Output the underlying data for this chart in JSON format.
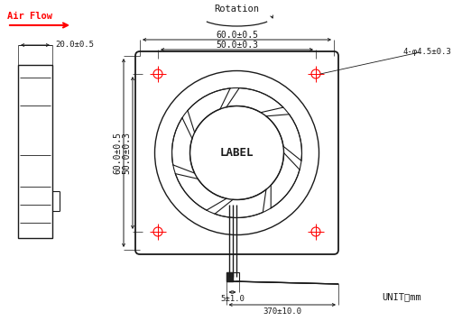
{
  "bg_color": "#ffffff",
  "line_color": "#1a1a1a",
  "red_color": "#ff0000",
  "label_airflow": "Air Flow",
  "label_unit": "UNIT：mm",
  "label_label": "LABEL",
  "title_rotation": "Rotation",
  "dim_width_outer": "60.0±0.5",
  "dim_width_inner": "50.0±0.3",
  "dim_height_outer": "60.0±0.5",
  "dim_height_inner": "50.0±0.3",
  "dim_depth": "20.0±0.5",
  "dim_hole": "4-φ4.5±0.3",
  "dim_wire_gap": "5±1.0",
  "dim_wire_len": "370±10.0",
  "figsize": [
    5.12,
    3.56
  ],
  "dpi": 100
}
